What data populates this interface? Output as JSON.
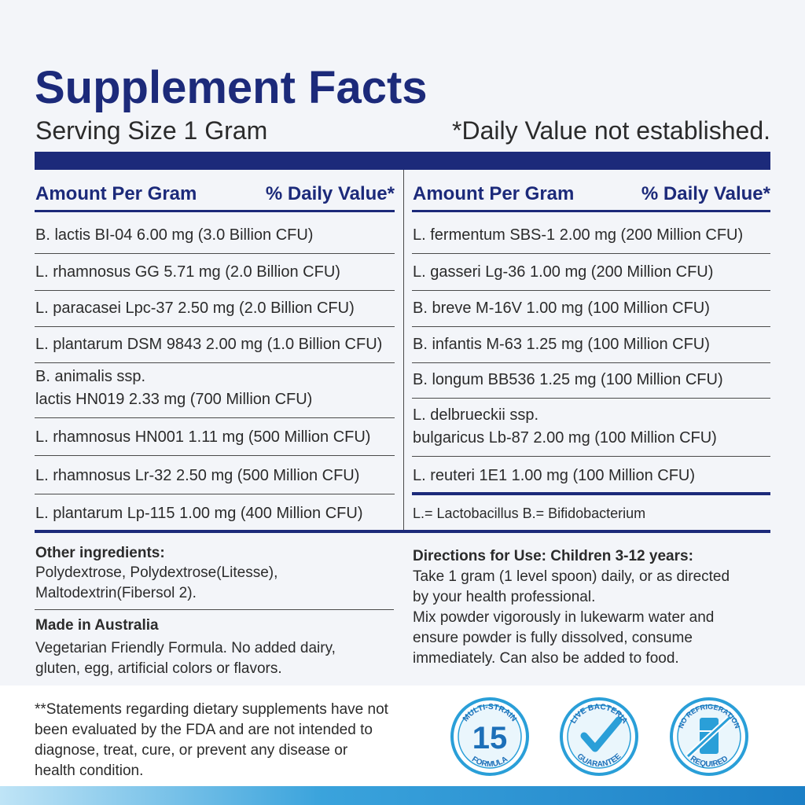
{
  "title": "Supplement Facts",
  "serving_size": "Serving Size 1 Gram",
  "dv_note": "*Daily Value not established.",
  "columns": [
    {
      "amount_header": "Amount Per Gram",
      "dv_header": "% Daily Value*",
      "rows": [
        [
          "B. lactis BI-04 6.00 mg (3.0 Billion CFU)"
        ],
        [
          "L. rhamnosus GG 5.71 mg (2.0 Billion CFU)"
        ],
        [
          "L. paracasei Lpc-37 2.50 mg (2.0 Billion CFU)"
        ],
        [
          "L. plantarum DSM 9843 2.00 mg (1.0 Billion CFU)"
        ],
        [
          "B. animalis ssp.",
          "lactis HN019 2.33 mg (700 Million CFU)"
        ],
        [
          "L. rhamnosus HN001 1.11 mg (500 Million CFU)"
        ],
        [
          "L. rhamnosus Lr-32 2.50 mg (500 Million CFU)"
        ],
        [
          "L. plantarum Lp-115 1.00 mg (400 Million CFU)"
        ]
      ]
    },
    {
      "amount_header": "Amount Per Gram",
      "dv_header": "% Daily Value*",
      "rows": [
        [
          "L. fermentum SBS-1 2.00 mg (200 Million CFU)"
        ],
        [
          "L. gasseri Lg-36 1.00 mg (200 Million CFU)"
        ],
        [
          "B. breve M-16V 1.00 mg (100 Million CFU)"
        ],
        [
          "B. infantis M-63 1.25 mg (100 Million CFU)"
        ],
        [
          "B. longum BB536 1.25 mg (100 Million CFU)"
        ],
        [
          "L. delbrueckii ssp.",
          "bulgaricus Lb-87 2.00 mg (100 Million CFU)"
        ],
        [
          "L. reuteri 1E1 1.00 mg (100 Million CFU)"
        ]
      ]
    }
  ],
  "abbreviations": "L.= Lactobacillus  B.= Bifidobacterium",
  "other_ingredients": {
    "heading": "Other ingredients:",
    "lines": [
      "Polydextrose, Polydextrose(Litesse),",
      "Maltodextrin(Fibersol 2)."
    ]
  },
  "made_in": {
    "heading": "Made in Australia",
    "lines": [
      "Vegetarian Friendly Formula. No added dairy,",
      "gluten, egg, artificial colors or flavors."
    ]
  },
  "directions": {
    "heading": "Directions for Use: Children 3-12 years:",
    "lines": [
      "Take 1 gram (1 level spoon) daily, or as directed",
      "by your health professional.",
      "Mix powder vigorously in lukewarm water and",
      "ensure powder is fully dissolved, consume",
      "immediately. Can also be added to food."
    ]
  },
  "disclaimer": [
    "**Statements regarding dietary supplements have not",
    "been evaluated by the FDA and are not intended to",
    "diagnose, treat, cure, or prevent any disease or",
    "health condition."
  ],
  "badges": [
    {
      "top": "MULTI-STRAIN",
      "center": "15",
      "bottom": "FORMULA"
    },
    {
      "top": "LIVE BACTERIA",
      "bottom": "GUARANTEE"
    },
    {
      "top": "NO REFRIGERATION",
      "bottom": "REQUIRED"
    }
  ]
}
